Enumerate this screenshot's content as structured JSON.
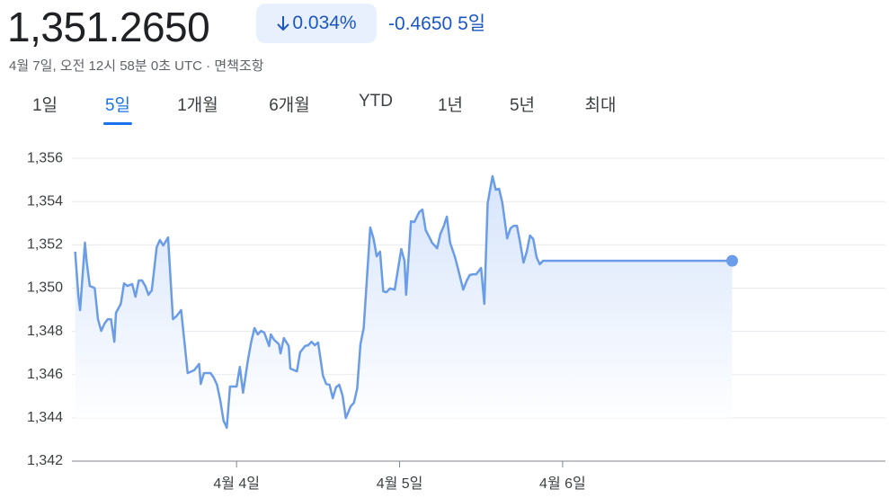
{
  "header": {
    "price": "1,351.2650",
    "change_percent": "0.034%",
    "change": "-0.4650",
    "period": "5일",
    "timestamp": "4월 7일, 오전 12시 58분 0초 UTC",
    "separator": "·",
    "disclaimer": "면책조항"
  },
  "tabs": [
    "1일",
    "5일",
    "1개월",
    "6개월",
    "YTD",
    "1년",
    "5년",
    "최대"
  ],
  "selected_tab": 1,
  "chart_data": {
    "type": "line",
    "color": "#6a9ce8",
    "grid": true,
    "area": true,
    "x": [
      0.01,
      0.03,
      0.04,
      0.07,
      0.08,
      0.1,
      0.13,
      0.15,
      0.17,
      0.19,
      0.21,
      0.23,
      0.25,
      0.26,
      0.29,
      0.31,
      0.33,
      0.36,
      0.38,
      0.4,
      0.42,
      0.44,
      0.46,
      0.48,
      0.51,
      0.53,
      0.55,
      0.58,
      0.61,
      0.63,
      0.66,
      0.7,
      0.74,
      0.77,
      0.78,
      0.8,
      0.84,
      0.86,
      0.88,
      0.9,
      0.92,
      0.94,
      0.96,
      0.99,
      1.0,
      1.02,
      1.04,
      1.07,
      1.09,
      1.11,
      1.13,
      1.15,
      1.17,
      1.2,
      1.21,
      1.23,
      1.26,
      1.27,
      1.29,
      1.32,
      1.33,
      1.37,
      1.39,
      1.42,
      1.44,
      1.46,
      1.48,
      1.5,
      1.53,
      1.55,
      1.57,
      1.59,
      1.61,
      1.63,
      1.65,
      1.67,
      1.7,
      1.72,
      1.74,
      1.76,
      1.78,
      1.82,
      1.84,
      1.86,
      1.88,
      1.9,
      1.92,
      1.94,
      1.97,
      1.99,
      2.01,
      2.03,
      2.04,
      2.07,
      2.09,
      2.12,
      2.14,
      2.16,
      2.18,
      2.2,
      2.23,
      2.25,
      2.27,
      2.29,
      2.31,
      2.34,
      2.36,
      2.39,
      2.41,
      2.43,
      2.45,
      2.47,
      2.5,
      2.52,
      2.54,
      2.57,
      2.59,
      2.61,
      2.63,
      2.66,
      2.68,
      2.7,
      2.72,
      2.74,
      2.76,
      2.78,
      2.8,
      2.82,
      2.84,
      2.86,
      2.88,
      4.04
    ],
    "values": [
      1351.68,
      1349.6,
      1348.98,
      1352.1,
      1351.26,
      1350.1,
      1350.0,
      1348.56,
      1348.02,
      1348.36,
      1348.56,
      1348.56,
      1347.52,
      1348.85,
      1349.27,
      1350.22,
      1350.1,
      1350.18,
      1349.6,
      1350.35,
      1350.35,
      1350.1,
      1349.69,
      1349.9,
      1351.89,
      1352.22,
      1351.97,
      1352.34,
      1348.56,
      1348.69,
      1348.98,
      1346.07,
      1346.2,
      1346.49,
      1345.57,
      1346.07,
      1346.07,
      1345.86,
      1345.53,
      1344.82,
      1343.87,
      1343.54,
      1345.45,
      1345.45,
      1345.45,
      1346.36,
      1345.16,
      1346.69,
      1347.52,
      1348.15,
      1347.86,
      1348.02,
      1347.94,
      1347.32,
      1347.86,
      1347.61,
      1347.4,
      1346.98,
      1347.69,
      1347.32,
      1346.28,
      1346.15,
      1347.03,
      1347.32,
      1347.36,
      1347.52,
      1347.36,
      1347.48,
      1345.95,
      1345.57,
      1345.53,
      1344.91,
      1345.41,
      1345.53,
      1345.03,
      1343.99,
      1344.53,
      1344.7,
      1345.37,
      1347.4,
      1348.15,
      1352.8,
      1352.3,
      1351.47,
      1351.68,
      1349.85,
      1349.81,
      1349.98,
      1349.93,
      1350.85,
      1351.8,
      1351.26,
      1349.69,
      1353.09,
      1353.05,
      1353.51,
      1353.63,
      1352.68,
      1352.39,
      1352.09,
      1351.84,
      1352.51,
      1352.84,
      1353.3,
      1352.09,
      1351.43,
      1350.85,
      1349.93,
      1350.31,
      1350.6,
      1350.64,
      1350.64,
      1350.93,
      1349.27,
      1353.92,
      1355.17,
      1354.55,
      1354.59,
      1353.96,
      1352.3,
      1352.76,
      1352.88,
      1352.88,
      1352.09,
      1351.18,
      1351.68,
      1352.43,
      1352.26,
      1351.43,
      1351.1,
      1351.26,
      1351.26
    ],
    "xlim": [
      -0.01,
      4.98
    ],
    "xticks": [
      {
        "value": 1,
        "label": "4월 4일"
      },
      {
        "value": 2,
        "label": "4월 5일"
      },
      {
        "value": 3,
        "label": "4월 6일"
      }
    ],
    "ylim": [
      1342,
      1357
    ],
    "yticks": [
      {
        "value": 1342,
        "label": "1,342"
      },
      {
        "value": 1344,
        "label": "1,344"
      },
      {
        "value": 1346,
        "label": "1,346"
      },
      {
        "value": 1348,
        "label": "1,348"
      },
      {
        "value": 1350,
        "label": "1,350"
      },
      {
        "value": 1352,
        "label": "1,352"
      },
      {
        "value": 1354,
        "label": "1,354"
      },
      {
        "value": 1356,
        "label": "1,356"
      }
    ]
  }
}
